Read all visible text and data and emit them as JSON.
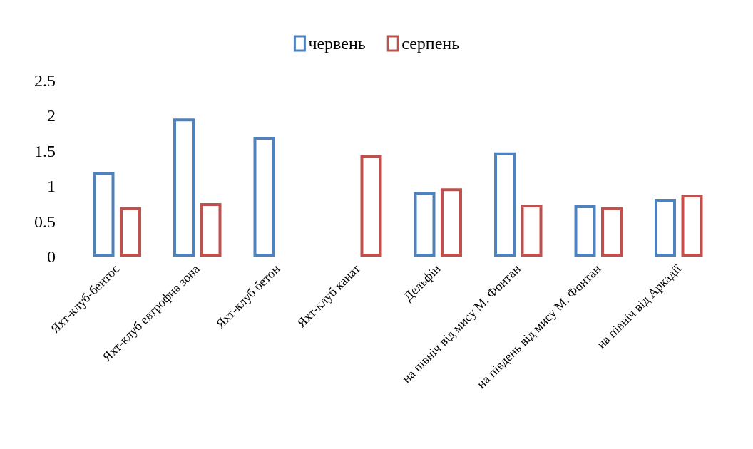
{
  "chart_data": {
    "type": "bar",
    "categories": [
      "Яхт-клуб-бентос",
      "Яхт-клуб евтрофна зона",
      "Яхт-клуб бетон",
      "Яхт-клуб канат",
      "Дельфін",
      "на північ від мису М. Фонтан",
      "на південь від мису М. Фонтан",
      "на північ від Аркадії"
    ],
    "series": [
      {
        "name": "червень",
        "color": "#4f81bd",
        "values": [
          1.2,
          1.96,
          1.7,
          null,
          0.91,
          1.48,
          0.73,
          0.82
        ]
      },
      {
        "name": "серпень",
        "color": "#c0504d",
        "values": [
          0.7,
          0.76,
          null,
          1.44,
          0.97,
          0.74,
          0.7,
          0.88
        ]
      }
    ],
    "ylim": [
      0,
      2.5
    ],
    "yticks": [
      0,
      0.5,
      1,
      1.5,
      2,
      2.5
    ],
    "grid": false,
    "legend": "top"
  }
}
